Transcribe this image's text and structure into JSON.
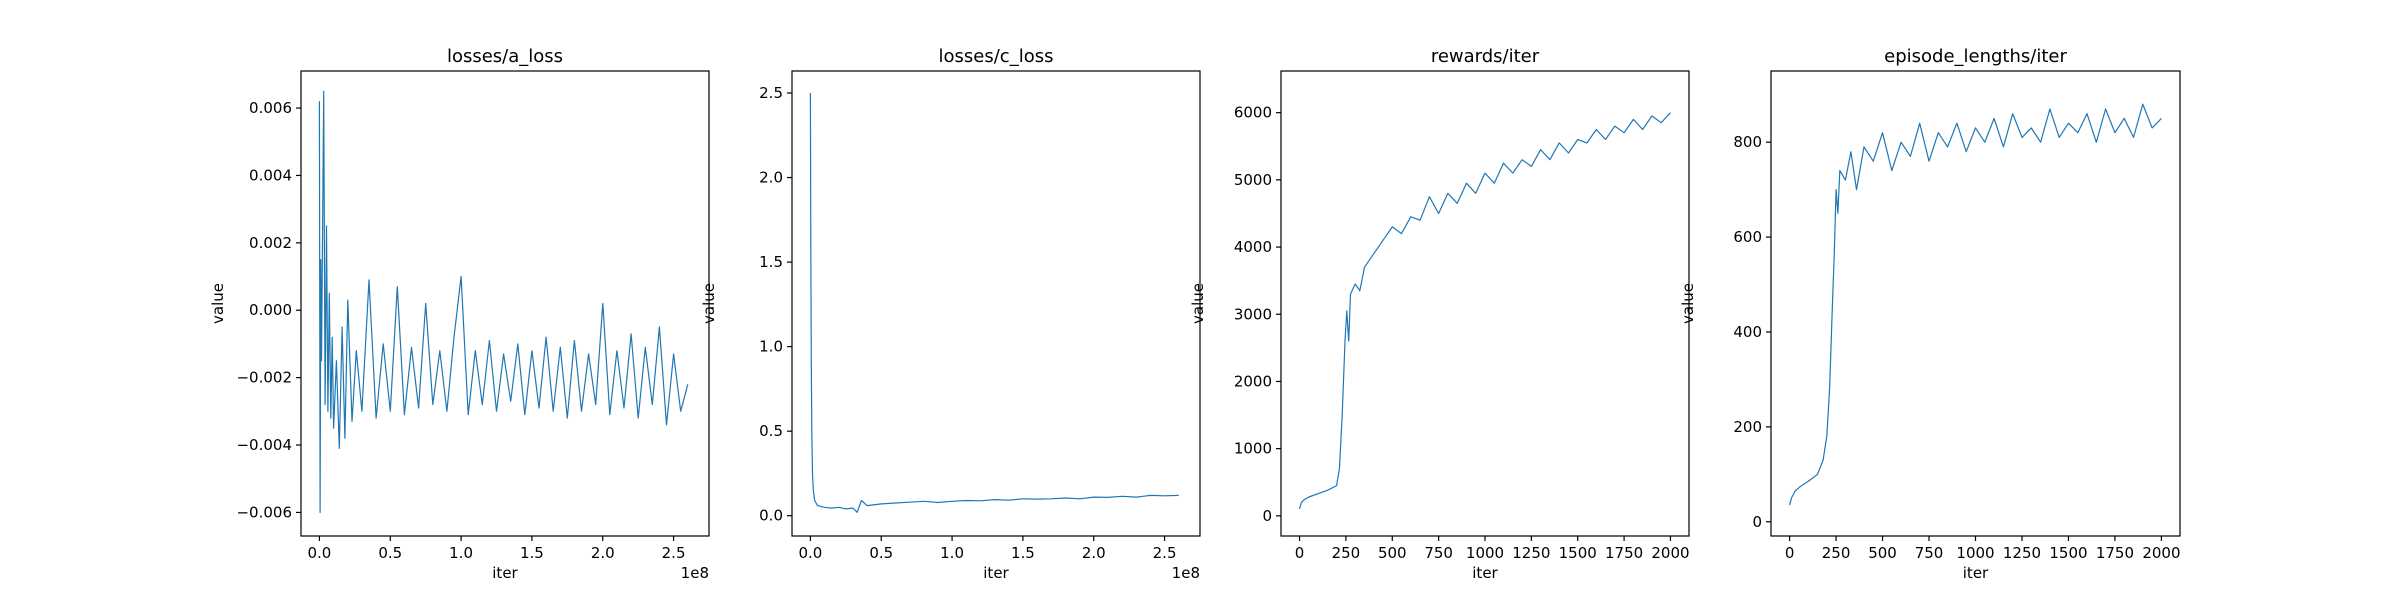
{
  "chart_data": [
    {
      "type": "line",
      "title": "losses/a_loss",
      "xlabel": "iter",
      "ylabel": "value",
      "xlim": [
        -0.13,
        2.75
      ],
      "ylim": [
        -0.0067,
        0.0071
      ],
      "x_ticks": [
        0,
        0.5,
        1.0,
        1.5,
        2.0,
        2.5
      ],
      "x_tick_labels": [
        "0.0",
        "0.5",
        "1.0",
        "1.5",
        "2.0",
        "2.5"
      ],
      "x_offset_label": "1e8",
      "y_ticks": [
        -0.006,
        -0.004,
        -0.002,
        0.0,
        0.002,
        0.004,
        0.006
      ],
      "y_tick_labels": [
        "−0.006",
        "−0.004",
        "−0.002",
        "0.000",
        "0.002",
        "0.004",
        "0.006"
      ],
      "color": "#1f77b4",
      "grid": false,
      "series": [
        {
          "x": [
            0.0,
            0.005,
            0.01,
            0.015,
            0.02,
            0.03,
            0.04,
            0.05,
            0.06,
            0.07,
            0.08,
            0.09,
            0.1,
            0.12,
            0.14,
            0.16,
            0.18,
            0.2,
            0.23,
            0.26,
            0.3,
            0.35,
            0.4,
            0.45,
            0.5,
            0.55,
            0.6,
            0.65,
            0.7,
            0.75,
            0.8,
            0.85,
            0.9,
            0.95,
            1.0,
            1.05,
            1.1,
            1.15,
            1.2,
            1.25,
            1.3,
            1.35,
            1.4,
            1.45,
            1.5,
            1.55,
            1.6,
            1.65,
            1.7,
            1.75,
            1.8,
            1.85,
            1.9,
            1.95,
            2.0,
            2.05,
            2.1,
            2.15,
            2.2,
            2.25,
            2.3,
            2.35,
            2.4,
            2.45,
            2.5,
            2.55,
            2.6
          ],
          "y": [
            0.0062,
            -0.006,
            0.0015,
            -0.0015,
            0.0013,
            0.0065,
            -0.0028,
            0.0025,
            -0.003,
            0.0005,
            -0.0032,
            -0.0008,
            -0.0035,
            -0.0015,
            -0.0041,
            -0.0005,
            -0.0038,
            0.0003,
            -0.0033,
            -0.0012,
            -0.003,
            0.0009,
            -0.0032,
            -0.001,
            -0.003,
            0.0007,
            -0.0031,
            -0.0011,
            -0.0029,
            0.0002,
            -0.0028,
            -0.0012,
            -0.003,
            -0.0008,
            0.001,
            -0.0031,
            -0.0012,
            -0.0028,
            -0.0009,
            -0.003,
            -0.0013,
            -0.0027,
            -0.001,
            -0.0031,
            -0.0012,
            -0.0029,
            -0.0008,
            -0.003,
            -0.0011,
            -0.0032,
            -0.0009,
            -0.003,
            -0.0013,
            -0.0028,
            0.0002,
            -0.0031,
            -0.0012,
            -0.0029,
            -0.0007,
            -0.0032,
            -0.0011,
            -0.0028,
            -0.0005,
            -0.0034,
            -0.0013,
            -0.003,
            -0.0022
          ]
        }
      ]
    },
    {
      "type": "line",
      "title": "losses/c_loss",
      "xlabel": "iter",
      "ylabel": "value",
      "xlim": [
        -0.13,
        2.75
      ],
      "ylim": [
        -0.12,
        2.63
      ],
      "x_ticks": [
        0,
        0.5,
        1.0,
        1.5,
        2.0,
        2.5
      ],
      "x_tick_labels": [
        "0.0",
        "0.5",
        "1.0",
        "1.5",
        "2.0",
        "2.5"
      ],
      "x_offset_label": "1e8",
      "y_ticks": [
        0.0,
        0.5,
        1.0,
        1.5,
        2.0,
        2.5
      ],
      "y_tick_labels": [
        "0.0",
        "0.5",
        "1.0",
        "1.5",
        "2.0",
        "2.5"
      ],
      "color": "#1f77b4",
      "grid": false,
      "series": [
        {
          "x": [
            0.0,
            0.003,
            0.006,
            0.01,
            0.015,
            0.02,
            0.03,
            0.05,
            0.1,
            0.15,
            0.2,
            0.25,
            0.3,
            0.33,
            0.36,
            0.4,
            0.5,
            0.6,
            0.7,
            0.8,
            0.9,
            1.0,
            1.1,
            1.2,
            1.3,
            1.4,
            1.5,
            1.6,
            1.7,
            1.8,
            1.9,
            2.0,
            2.1,
            2.2,
            2.3,
            2.4,
            2.5,
            2.6
          ],
          "y": [
            2.5,
            1.6,
            0.9,
            0.5,
            0.25,
            0.15,
            0.09,
            0.06,
            0.05,
            0.045,
            0.05,
            0.04,
            0.045,
            0.02,
            0.09,
            0.06,
            0.07,
            0.075,
            0.08,
            0.085,
            0.078,
            0.085,
            0.09,
            0.088,
            0.095,
            0.092,
            0.1,
            0.098,
            0.1,
            0.105,
            0.1,
            0.11,
            0.108,
            0.115,
            0.11,
            0.12,
            0.118,
            0.12
          ]
        }
      ]
    },
    {
      "type": "line",
      "title": "rewards/iter",
      "xlabel": "iter",
      "ylabel": "value",
      "xlim": [
        -100,
        2100
      ],
      "ylim": [
        -300,
        6620
      ],
      "x_ticks": [
        0,
        250,
        500,
        750,
        1000,
        1250,
        1500,
        1750,
        2000
      ],
      "x_tick_labels": [
        "0",
        "250",
        "500",
        "750",
        "1000",
        "1250",
        "1500",
        "1750",
        "2000"
      ],
      "y_ticks": [
        0,
        1000,
        2000,
        3000,
        4000,
        5000,
        6000
      ],
      "y_tick_labels": [
        "0",
        "1000",
        "2000",
        "3000",
        "4000",
        "5000",
        "6000"
      ],
      "color": "#1f77b4",
      "grid": false,
      "series": [
        {
          "x": [
            0,
            10,
            25,
            50,
            100,
            150,
            200,
            215,
            230,
            245,
            255,
            265,
            275,
            300,
            325,
            350,
            400,
            450,
            500,
            550,
            600,
            650,
            700,
            750,
            800,
            850,
            900,
            950,
            1000,
            1050,
            1100,
            1150,
            1200,
            1250,
            1300,
            1350,
            1400,
            1450,
            1500,
            1550,
            1600,
            1650,
            1700,
            1750,
            1800,
            1850,
            1900,
            1950,
            2000
          ],
          "y": [
            100,
            200,
            240,
            280,
            330,
            380,
            450,
            700,
            1500,
            2600,
            3050,
            2600,
            3300,
            3450,
            3350,
            3700,
            3900,
            4100,
            4300,
            4200,
            4450,
            4400,
            4750,
            4500,
            4800,
            4650,
            4950,
            4800,
            5100,
            4950,
            5250,
            5100,
            5300,
            5200,
            5450,
            5300,
            5550,
            5400,
            5600,
            5550,
            5750,
            5600,
            5800,
            5700,
            5900,
            5750,
            5950,
            5850,
            6000
          ]
        }
      ]
    },
    {
      "type": "line",
      "title": "episode_lengths/iter",
      "xlabel": "iter",
      "ylabel": "value",
      "xlim": [
        -100,
        2100
      ],
      "ylim": [
        -30,
        950
      ],
      "x_ticks": [
        0,
        250,
        500,
        750,
        1000,
        1250,
        1500,
        1750,
        2000
      ],
      "x_tick_labels": [
        "0",
        "250",
        "500",
        "750",
        "1000",
        "1250",
        "1500",
        "1750",
        "2000"
      ],
      "y_ticks": [
        0,
        200,
        400,
        600,
        800
      ],
      "y_tick_labels": [
        "0",
        "200",
        "400",
        "600",
        "800"
      ],
      "color": "#1f77b4",
      "grid": false,
      "series": [
        {
          "x": [
            0,
            10,
            30,
            60,
            100,
            150,
            180,
            200,
            215,
            230,
            240,
            250,
            260,
            270,
            300,
            330,
            360,
            400,
            450,
            500,
            550,
            600,
            650,
            700,
            750,
            800,
            850,
            900,
            950,
            1000,
            1050,
            1100,
            1150,
            1200,
            1250,
            1300,
            1350,
            1400,
            1450,
            1500,
            1550,
            1600,
            1650,
            1700,
            1750,
            1800,
            1850,
            1900,
            1950,
            2000
          ],
          "y": [
            35,
            50,
            65,
            75,
            85,
            100,
            130,
            180,
            280,
            450,
            560,
            700,
            650,
            740,
            720,
            780,
            700,
            790,
            760,
            820,
            740,
            800,
            770,
            840,
            760,
            820,
            790,
            840,
            780,
            830,
            800,
            850,
            790,
            860,
            810,
            830,
            800,
            870,
            810,
            840,
            820,
            860,
            800,
            870,
            820,
            850,
            810,
            880,
            830,
            850
          ]
        }
      ]
    }
  ]
}
